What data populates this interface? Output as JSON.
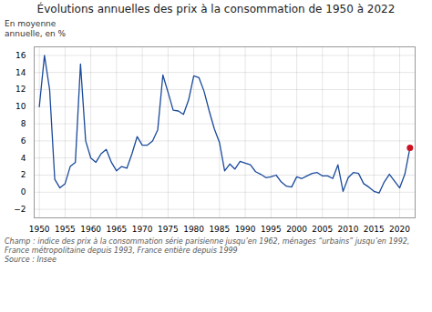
{
  "chart_data": {
    "type": "line",
    "title": "Évolutions annuelles des prix à la consommation de 1950 à 2022",
    "ylabel": [
      "En moyenne",
      "annuelle, en %"
    ],
    "caption": [
      "Champ : indice des prix à la consommation série parisienne jusqu’en 1962, ménages “urbains” jusqu’en 1992,",
      "France métropolitaine depuis 1993, France entière depuis 1999"
    ],
    "source": "Source : Insee",
    "x": [
      1950,
      1951,
      1952,
      1953,
      1954,
      1955,
      1956,
      1957,
      1958,
      1959,
      1960,
      1961,
      1962,
      1963,
      1964,
      1965,
      1966,
      1967,
      1968,
      1969,
      1970,
      1971,
      1972,
      1973,
      1974,
      1975,
      1976,
      1977,
      1978,
      1979,
      1980,
      1981,
      1982,
      1983,
      1984,
      1985,
      1986,
      1987,
      1988,
      1989,
      1990,
      1991,
      1992,
      1993,
      1994,
      1995,
      1996,
      1997,
      1998,
      1999,
      2000,
      2001,
      2002,
      2003,
      2004,
      2005,
      2006,
      2007,
      2008,
      2009,
      2010,
      2011,
      2012,
      2013,
      2014,
      2015,
      2016,
      2017,
      2018,
      2019,
      2020,
      2021,
      2022
    ],
    "series": [
      {
        "type": "line",
        "color": "#1a4a9b",
        "values": [
          10.0,
          16.0,
          12.0,
          1.5,
          0.5,
          1.0,
          3.0,
          3.5,
          15.0,
          6.0,
          4.0,
          3.5,
          4.5,
          5.0,
          3.5,
          2.5,
          3.0,
          2.8,
          4.5,
          6.5,
          5.5,
          5.5,
          6.0,
          7.3,
          13.7,
          11.7,
          9.6,
          9.5,
          9.1,
          10.8,
          13.6,
          13.4,
          11.8,
          9.5,
          7.4,
          5.8,
          2.5,
          3.3,
          2.7,
          3.6,
          3.4,
          3.2,
          2.4,
          2.1,
          1.7,
          1.8,
          2.0,
          1.2,
          0.7,
          0.6,
          1.8,
          1.6,
          1.9,
          2.2,
          2.3,
          1.9,
          1.9,
          1.6,
          3.2,
          0.1,
          1.7,
          2.3,
          2.2,
          1.0,
          0.6,
          0.1,
          -0.1,
          1.2,
          2.1,
          1.3,
          0.5,
          2.1,
          5.2
        ]
      },
      {
        "type": "scatter",
        "color": "#cc1122",
        "values": [
          null,
          null,
          null,
          null,
          null,
          null,
          null,
          null,
          null,
          null,
          null,
          null,
          null,
          null,
          null,
          null,
          null,
          null,
          null,
          null,
          null,
          null,
          null,
          null,
          null,
          null,
          null,
          null,
          null,
          null,
          null,
          null,
          null,
          null,
          null,
          null,
          null,
          null,
          null,
          null,
          null,
          null,
          null,
          null,
          null,
          null,
          null,
          null,
          null,
          null,
          null,
          null,
          null,
          null,
          null,
          null,
          null,
          null,
          null,
          null,
          null,
          null,
          null,
          null,
          null,
          null,
          null,
          null,
          null,
          null,
          null,
          null,
          5.2
        ]
      }
    ],
    "xlim": [
      1949,
      2023
    ],
    "xticks": [
      1950,
      1955,
      1960,
      1965,
      1970,
      1975,
      1980,
      1985,
      1990,
      1995,
      2000,
      2005,
      2010,
      2015,
      2020
    ],
    "ylim": [
      -3,
      17
    ],
    "yticks": [
      -2,
      0,
      2,
      4,
      6,
      8,
      10,
      12,
      14,
      16
    ],
    "grid": true
  }
}
